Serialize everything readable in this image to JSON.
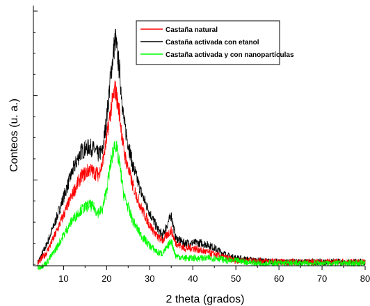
{
  "chart_data": {
    "type": "line",
    "xlabel": "2 theta (grados)",
    "ylabel": "Conteos (u. a.)",
    "xlim": [
      3,
      80
    ],
    "ylim": [
      0,
      100
    ],
    "x_ticks": [
      10,
      20,
      30,
      40,
      50,
      60,
      70,
      80
    ],
    "x_tick_labels": [
      "10",
      "20",
      "30",
      "40",
      "50",
      "60",
      "70",
      "80"
    ],
    "y_tick_labels": [],
    "legend_position": "top-right",
    "colors": {
      "castana_natural": "#ff0000",
      "castana_etanol": "#000000",
      "castana_nano": "#00ff00"
    },
    "series": [
      {
        "name": "Castaña natural",
        "color": "#ff0000",
        "x": [
          4,
          6,
          8,
          10,
          12,
          14,
          16,
          17,
          18,
          19,
          20,
          21,
          22,
          23,
          24,
          26,
          28,
          30,
          32,
          33,
          34,
          35,
          36,
          38,
          40,
          42,
          44,
          46,
          48,
          50,
          55,
          60,
          65,
          70,
          75,
          80
        ],
        "y": [
          1,
          5,
          12,
          20,
          28,
          35,
          38,
          37,
          36,
          40,
          50,
          62,
          70,
          60,
          45,
          32,
          23,
          16,
          11,
          10,
          12,
          14,
          9,
          7,
          7,
          6,
          5,
          4,
          3,
          2,
          2,
          1.5,
          1.5,
          1.5,
          1.5,
          1.5
        ]
      },
      {
        "name": "Castaña activada con etanol",
        "color": "#000000",
        "x": [
          4,
          6,
          8,
          10,
          12,
          14,
          16,
          17,
          18,
          19,
          20,
          21,
          22,
          23,
          24,
          26,
          28,
          30,
          32,
          33,
          34,
          35,
          36,
          38,
          40,
          42,
          44,
          46,
          48,
          50,
          55,
          60,
          65,
          70,
          75,
          80
        ],
        "y": [
          1,
          8,
          17,
          27,
          37,
          45,
          47,
          46,
          44,
          45,
          58,
          76,
          90,
          77,
          57,
          40,
          29,
          21,
          14,
          12,
          16,
          20,
          11,
          9,
          9,
          9,
          8,
          6,
          4,
          3,
          2,
          1.5,
          1.5,
          1.5,
          1.5,
          1.5
        ]
      },
      {
        "name": "Castaña activada y con nanopartículas",
        "color": "#00ff00",
        "x": [
          4,
          6,
          8,
          10,
          12,
          14,
          16,
          17,
          18,
          19,
          20,
          21,
          22,
          23,
          24,
          26,
          28,
          30,
          32,
          33,
          34,
          35,
          36,
          38,
          40,
          42,
          44,
          46,
          48,
          50,
          55,
          60,
          65,
          70,
          75,
          80
        ],
        "y": [
          -1,
          1,
          6,
          12,
          18,
          22,
          24,
          23,
          21,
          22,
          30,
          41,
          49,
          40,
          28,
          18,
          12,
          8,
          5,
          5,
          7,
          10,
          4,
          3,
          3,
          3,
          3,
          3,
          2,
          2,
          1,
          1,
          1,
          1,
          1,
          1
        ]
      }
    ]
  }
}
